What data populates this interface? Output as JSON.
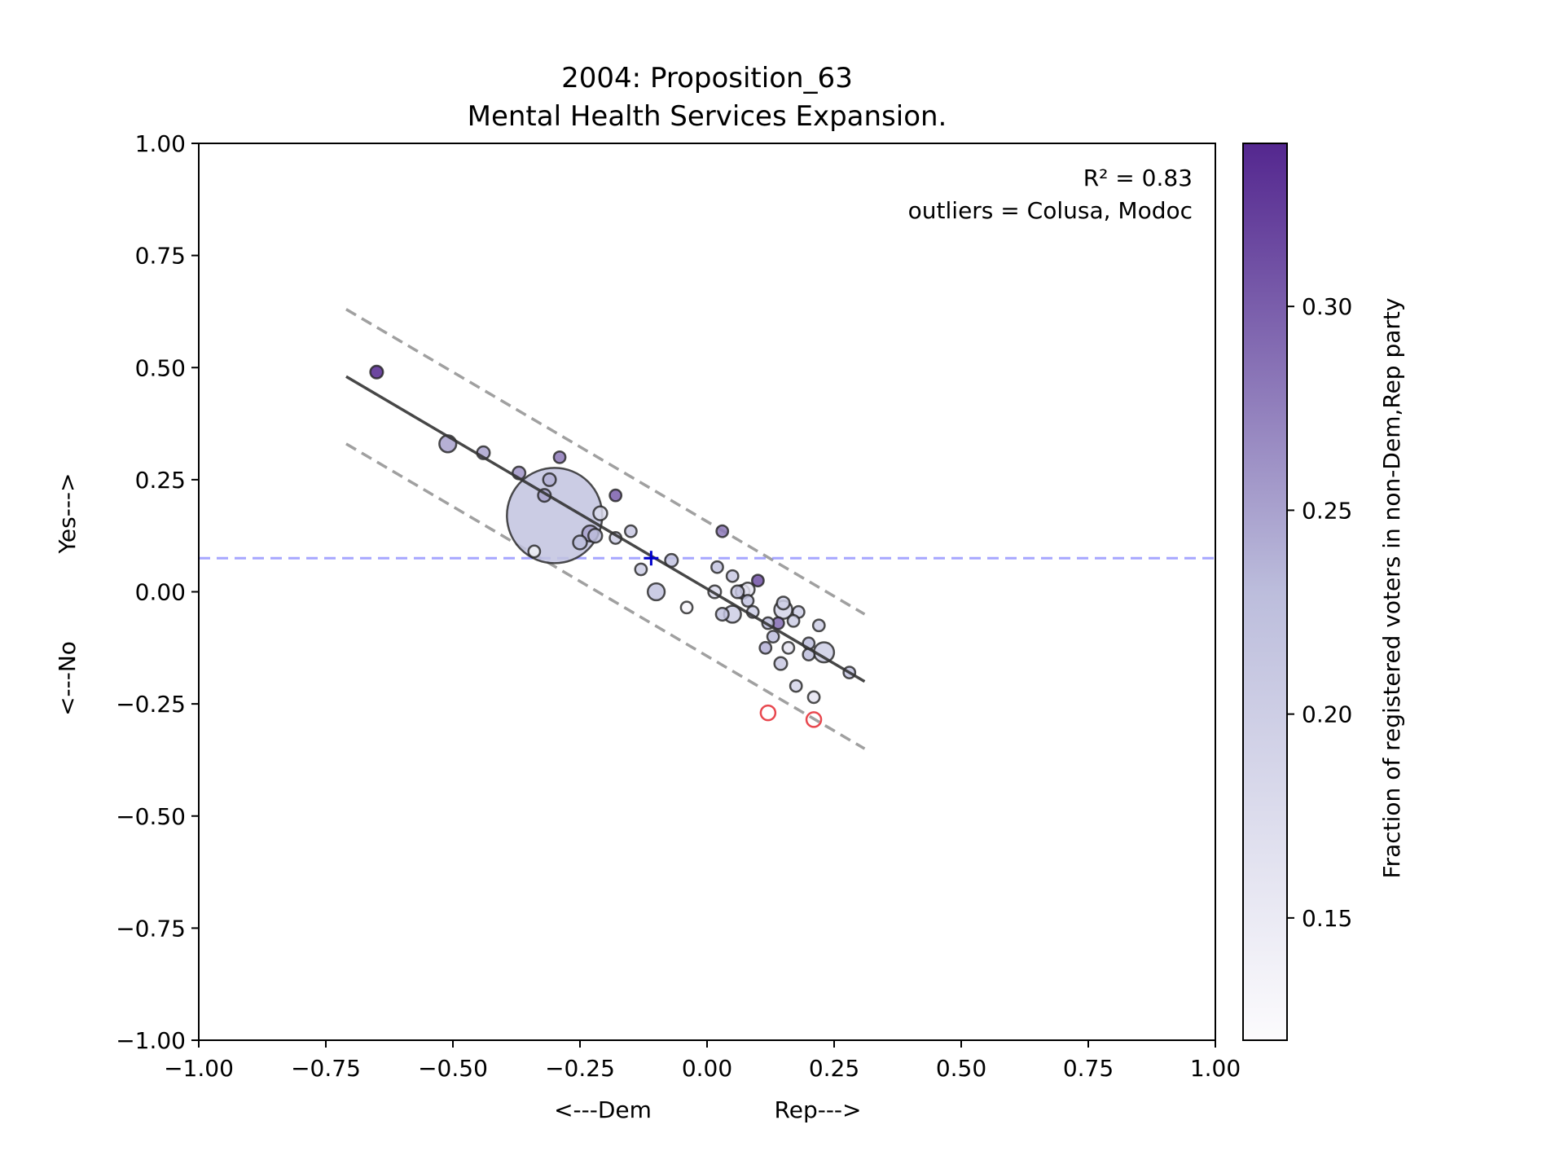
{
  "chart_data": {
    "type": "scatter",
    "title_line1": "2004: Proposition_63",
    "title_line2": "Mental Health Services Expansion.",
    "xlabel_left": "<---Dem",
    "xlabel_right": "Rep--->",
    "ylabel_yes": "Yes--->",
    "ylabel_no": "<---No",
    "xlim": [
      -1,
      1
    ],
    "ylim": [
      -1,
      1
    ],
    "x_ticks": [
      "−1.00",
      "−0.75",
      "−0.50",
      "−0.25",
      "0.00",
      "0.25",
      "0.50",
      "0.75",
      "1.00"
    ],
    "y_ticks": [
      "−1.00",
      "−0.75",
      "−0.50",
      "−0.25",
      "0.00",
      "0.25",
      "0.50",
      "0.75",
      "1.00"
    ],
    "annotation_r2": "R² = 0.83",
    "annotation_outliers": "outliers = Colusa, Modoc",
    "colorbar": {
      "label": "Fraction of registered voters in non-Dem,Rep party",
      "range": [
        0.12,
        0.34
      ],
      "ticks": [
        "0.15",
        "0.20",
        "0.25",
        "0.30"
      ],
      "tick_values": [
        0.15,
        0.2,
        0.25,
        0.3
      ],
      "color_low": "#fcfbfd",
      "color_high": "#54278f"
    },
    "fit_line": {
      "x": [
        -0.71,
        0.31
      ],
      "y": [
        0.48,
        -0.2
      ]
    },
    "band_upper": {
      "x": [
        -0.71,
        0.31
      ],
      "y": [
        0.63,
        -0.05
      ]
    },
    "band_lower": {
      "x": [
        -0.71,
        0.31
      ],
      "y": [
        0.33,
        -0.35
      ]
    },
    "mean_line_y": 0.075,
    "mean_marker": {
      "x": -0.11,
      "y": 0.075,
      "color": "#0000cc"
    },
    "mean_line_color": "#8080ff",
    "outlier_color": "#e8484f",
    "points": [
      {
        "x": -0.65,
        "y": 0.49,
        "s": 0.6,
        "c": 0.34
      },
      {
        "x": -0.51,
        "y": 0.33,
        "s": 0.8,
        "c": 0.25
      },
      {
        "x": -0.44,
        "y": 0.31,
        "s": 0.6,
        "c": 0.25
      },
      {
        "x": -0.37,
        "y": 0.265,
        "s": 0.6,
        "c": 0.26
      },
      {
        "x": -0.31,
        "y": 0.25,
        "s": 0.6,
        "c": 0.24
      },
      {
        "x": -0.29,
        "y": 0.3,
        "s": 0.55,
        "c": 0.28
      },
      {
        "x": -0.32,
        "y": 0.215,
        "s": 0.6,
        "c": 0.25
      },
      {
        "x": -0.3,
        "y": 0.17,
        "s": 4.5,
        "c": 0.22
      },
      {
        "x": -0.34,
        "y": 0.09,
        "s": 0.55,
        "c": 0.14
      },
      {
        "x": -0.18,
        "y": 0.215,
        "s": 0.55,
        "c": 0.3
      },
      {
        "x": -0.21,
        "y": 0.175,
        "s": 0.65,
        "c": 0.18
      },
      {
        "x": -0.23,
        "y": 0.13,
        "s": 0.75,
        "c": 0.25
      },
      {
        "x": -0.22,
        "y": 0.125,
        "s": 0.65,
        "c": 0.23
      },
      {
        "x": -0.25,
        "y": 0.11,
        "s": 0.65,
        "c": 0.23
      },
      {
        "x": -0.15,
        "y": 0.135,
        "s": 0.55,
        "c": 0.21
      },
      {
        "x": -0.18,
        "y": 0.12,
        "s": 0.55,
        "c": 0.2
      },
      {
        "x": -0.13,
        "y": 0.05,
        "s": 0.55,
        "c": 0.2
      },
      {
        "x": -0.07,
        "y": 0.07,
        "s": 0.6,
        "c": 0.22
      },
      {
        "x": -0.1,
        "y": 0.0,
        "s": 0.8,
        "c": 0.22
      },
      {
        "x": -0.04,
        "y": -0.035,
        "s": 0.55,
        "c": 0.13
      },
      {
        "x": 0.03,
        "y": 0.135,
        "s": 0.55,
        "c": 0.28
      },
      {
        "x": 0.02,
        "y": 0.055,
        "s": 0.55,
        "c": 0.22
      },
      {
        "x": 0.05,
        "y": 0.035,
        "s": 0.55,
        "c": 0.21
      },
      {
        "x": 0.1,
        "y": 0.025,
        "s": 0.55,
        "c": 0.31
      },
      {
        "x": 0.015,
        "y": 0.0,
        "s": 0.6,
        "c": 0.18
      },
      {
        "x": 0.06,
        "y": 0.0,
        "s": 0.6,
        "c": 0.21
      },
      {
        "x": 0.07,
        "y": 0.0,
        "s": 0.65,
        "c": 0.23
      },
      {
        "x": 0.08,
        "y": 0.005,
        "s": 0.65,
        "c": 0.16
      },
      {
        "x": 0.08,
        "y": -0.02,
        "s": 0.55,
        "c": 0.22
      },
      {
        "x": 0.05,
        "y": -0.05,
        "s": 0.8,
        "c": 0.2
      },
      {
        "x": 0.03,
        "y": -0.05,
        "s": 0.6,
        "c": 0.22
      },
      {
        "x": 0.09,
        "y": -0.045,
        "s": 0.55,
        "c": 0.2
      },
      {
        "x": 0.15,
        "y": -0.025,
        "s": 0.6,
        "c": 0.2
      },
      {
        "x": 0.15,
        "y": -0.04,
        "s": 0.85,
        "c": 0.19
      },
      {
        "x": 0.18,
        "y": -0.045,
        "s": 0.55,
        "c": 0.2
      },
      {
        "x": 0.17,
        "y": -0.065,
        "s": 0.55,
        "c": 0.2
      },
      {
        "x": 0.14,
        "y": -0.07,
        "s": 0.55,
        "c": 0.29
      },
      {
        "x": 0.12,
        "y": -0.07,
        "s": 0.55,
        "c": 0.23
      },
      {
        "x": 0.13,
        "y": -0.1,
        "s": 0.55,
        "c": 0.23
      },
      {
        "x": 0.115,
        "y": -0.125,
        "s": 0.55,
        "c": 0.24
      },
      {
        "x": 0.16,
        "y": -0.125,
        "s": 0.55,
        "c": 0.16
      },
      {
        "x": 0.145,
        "y": -0.16,
        "s": 0.6,
        "c": 0.21
      },
      {
        "x": 0.22,
        "y": -0.075,
        "s": 0.55,
        "c": 0.2
      },
      {
        "x": 0.2,
        "y": -0.115,
        "s": 0.55,
        "c": 0.23
      },
      {
        "x": 0.23,
        "y": -0.135,
        "s": 0.95,
        "c": 0.2
      },
      {
        "x": 0.2,
        "y": -0.14,
        "s": 0.55,
        "c": 0.23
      },
      {
        "x": 0.28,
        "y": -0.18,
        "s": 0.55,
        "c": 0.22
      },
      {
        "x": 0.175,
        "y": -0.21,
        "s": 0.55,
        "c": 0.19
      },
      {
        "x": 0.21,
        "y": -0.235,
        "s": 0.55,
        "c": 0.16
      }
    ],
    "outlier_points": [
      {
        "x": 0.12,
        "y": -0.27
      },
      {
        "x": 0.21,
        "y": -0.285
      }
    ]
  }
}
